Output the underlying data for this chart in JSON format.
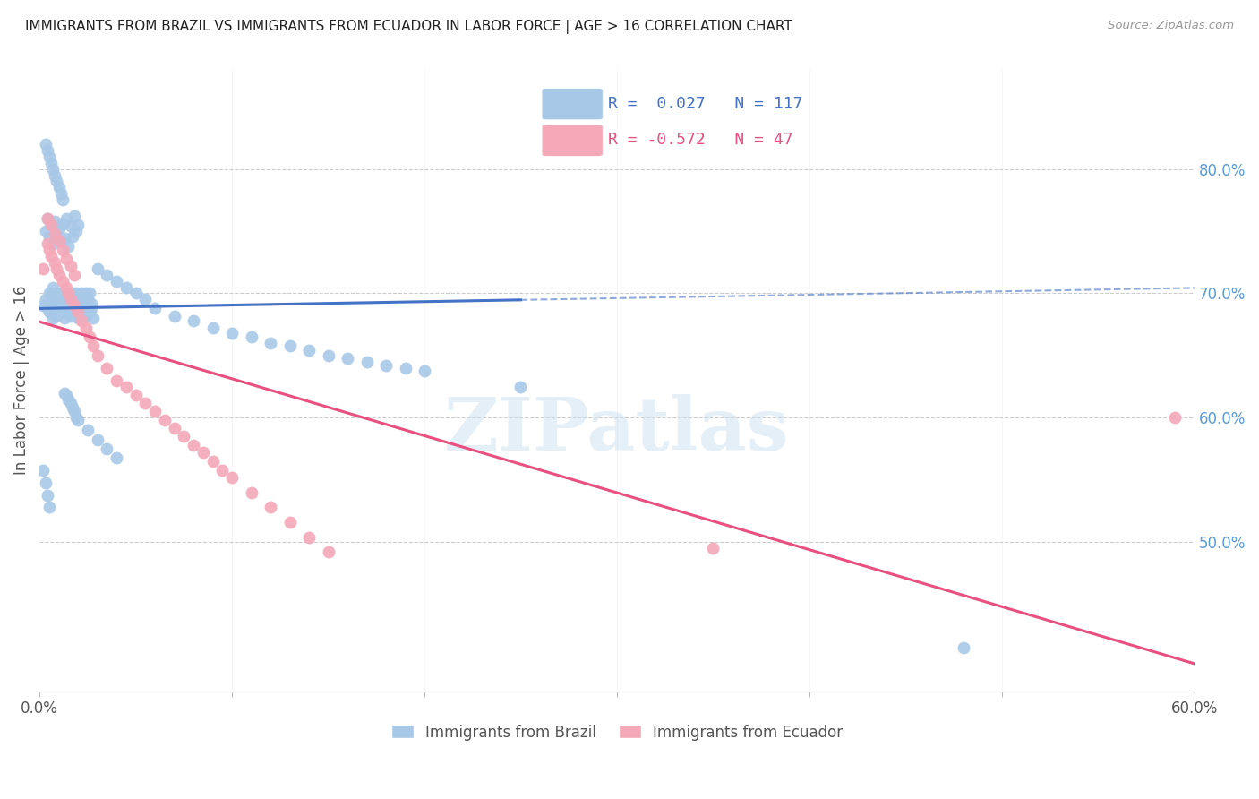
{
  "title": "IMMIGRANTS FROM BRAZIL VS IMMIGRANTS FROM ECUADOR IN LABOR FORCE | AGE > 16 CORRELATION CHART",
  "source": "Source: ZipAtlas.com",
  "ylabel": "In Labor Force | Age > 16",
  "xlim": [
    0.0,
    0.6
  ],
  "ylim": [
    0.38,
    0.88
  ],
  "right_yticks": [
    0.5,
    0.6,
    0.7,
    0.8
  ],
  "right_yticklabels": [
    "50.0%",
    "60.0%",
    "70.0%",
    "80.0%"
  ],
  "xticks": [
    0.0,
    0.1,
    0.2,
    0.3,
    0.4,
    0.5,
    0.6
  ],
  "xticklabels": [
    "0.0%",
    "",
    "",
    "",
    "",
    "",
    "60.0%"
  ],
  "brazil_R": 0.027,
  "brazil_N": 117,
  "ecuador_R": -0.572,
  "ecuador_N": 47,
  "brazil_color": "#A8C8E8",
  "ecuador_color": "#F4A8B8",
  "brazil_line_color": "#4472C4",
  "ecuador_line_color": "#E85080",
  "watermark": "ZIPatlas",
  "brazil_scatter_x": [
    0.002,
    0.003,
    0.004,
    0.005,
    0.005,
    0.006,
    0.006,
    0.007,
    0.007,
    0.008,
    0.008,
    0.009,
    0.009,
    0.01,
    0.01,
    0.011,
    0.011,
    0.012,
    0.012,
    0.013,
    0.013,
    0.014,
    0.014,
    0.015,
    0.015,
    0.016,
    0.016,
    0.017,
    0.017,
    0.018,
    0.018,
    0.019,
    0.019,
    0.02,
    0.02,
    0.021,
    0.021,
    0.022,
    0.022,
    0.023,
    0.023,
    0.024,
    0.024,
    0.025,
    0.025,
    0.026,
    0.026,
    0.027,
    0.027,
    0.028,
    0.003,
    0.004,
    0.005,
    0.006,
    0.007,
    0.008,
    0.009,
    0.01,
    0.011,
    0.012,
    0.013,
    0.014,
    0.015,
    0.016,
    0.017,
    0.018,
    0.019,
    0.02,
    0.03,
    0.035,
    0.04,
    0.045,
    0.05,
    0.055,
    0.06,
    0.07,
    0.08,
    0.09,
    0.1,
    0.11,
    0.12,
    0.13,
    0.14,
    0.15,
    0.16,
    0.17,
    0.18,
    0.19,
    0.2,
    0.25,
    0.003,
    0.004,
    0.005,
    0.006,
    0.007,
    0.008,
    0.009,
    0.01,
    0.011,
    0.012,
    0.013,
    0.014,
    0.015,
    0.016,
    0.017,
    0.018,
    0.019,
    0.02,
    0.025,
    0.03,
    0.035,
    0.04,
    0.002,
    0.003,
    0.004,
    0.005,
    0.48
  ],
  "brazil_scatter_y": [
    0.69,
    0.695,
    0.688,
    0.7,
    0.685,
    0.692,
    0.698,
    0.68,
    0.705,
    0.688,
    0.695,
    0.682,
    0.7,
    0.69,
    0.695,
    0.685,
    0.7,
    0.688,
    0.692,
    0.68,
    0.695,
    0.688,
    0.7,
    0.685,
    0.692,
    0.698,
    0.682,
    0.7,
    0.69,
    0.695,
    0.685,
    0.7,
    0.688,
    0.692,
    0.68,
    0.695,
    0.688,
    0.7,
    0.685,
    0.692,
    0.698,
    0.682,
    0.7,
    0.69,
    0.695,
    0.685,
    0.7,
    0.688,
    0.692,
    0.68,
    0.75,
    0.76,
    0.745,
    0.755,
    0.74,
    0.758,
    0.748,
    0.752,
    0.742,
    0.756,
    0.744,
    0.76,
    0.738,
    0.754,
    0.746,
    0.762,
    0.75,
    0.755,
    0.72,
    0.715,
    0.71,
    0.705,
    0.7,
    0.695,
    0.688,
    0.682,
    0.678,
    0.672,
    0.668,
    0.665,
    0.66,
    0.658,
    0.654,
    0.65,
    0.648,
    0.645,
    0.642,
    0.64,
    0.638,
    0.625,
    0.82,
    0.815,
    0.81,
    0.805,
    0.8,
    0.795,
    0.79,
    0.785,
    0.78,
    0.775,
    0.62,
    0.618,
    0.615,
    0.612,
    0.608,
    0.605,
    0.6,
    0.598,
    0.59,
    0.582,
    0.575,
    0.568,
    0.558,
    0.548,
    0.538,
    0.528,
    0.415
  ],
  "ecuador_scatter_x": [
    0.002,
    0.004,
    0.005,
    0.006,
    0.008,
    0.009,
    0.01,
    0.012,
    0.014,
    0.015,
    0.016,
    0.018,
    0.02,
    0.022,
    0.024,
    0.026,
    0.028,
    0.03,
    0.035,
    0.04,
    0.045,
    0.05,
    0.055,
    0.06,
    0.065,
    0.07,
    0.075,
    0.08,
    0.085,
    0.09,
    0.095,
    0.1,
    0.11,
    0.12,
    0.13,
    0.14,
    0.15,
    0.004,
    0.006,
    0.008,
    0.01,
    0.012,
    0.014,
    0.016,
    0.018,
    0.35,
    0.59
  ],
  "ecuador_scatter_y": [
    0.72,
    0.74,
    0.735,
    0.73,
    0.725,
    0.72,
    0.715,
    0.71,
    0.705,
    0.7,
    0.695,
    0.69,
    0.685,
    0.678,
    0.672,
    0.665,
    0.658,
    0.65,
    0.64,
    0.63,
    0.625,
    0.618,
    0.612,
    0.605,
    0.598,
    0.592,
    0.585,
    0.578,
    0.572,
    0.565,
    0.558,
    0.552,
    0.54,
    0.528,
    0.516,
    0.504,
    0.492,
    0.76,
    0.755,
    0.748,
    0.742,
    0.735,
    0.728,
    0.722,
    0.715,
    0.495,
    0.6
  ]
}
